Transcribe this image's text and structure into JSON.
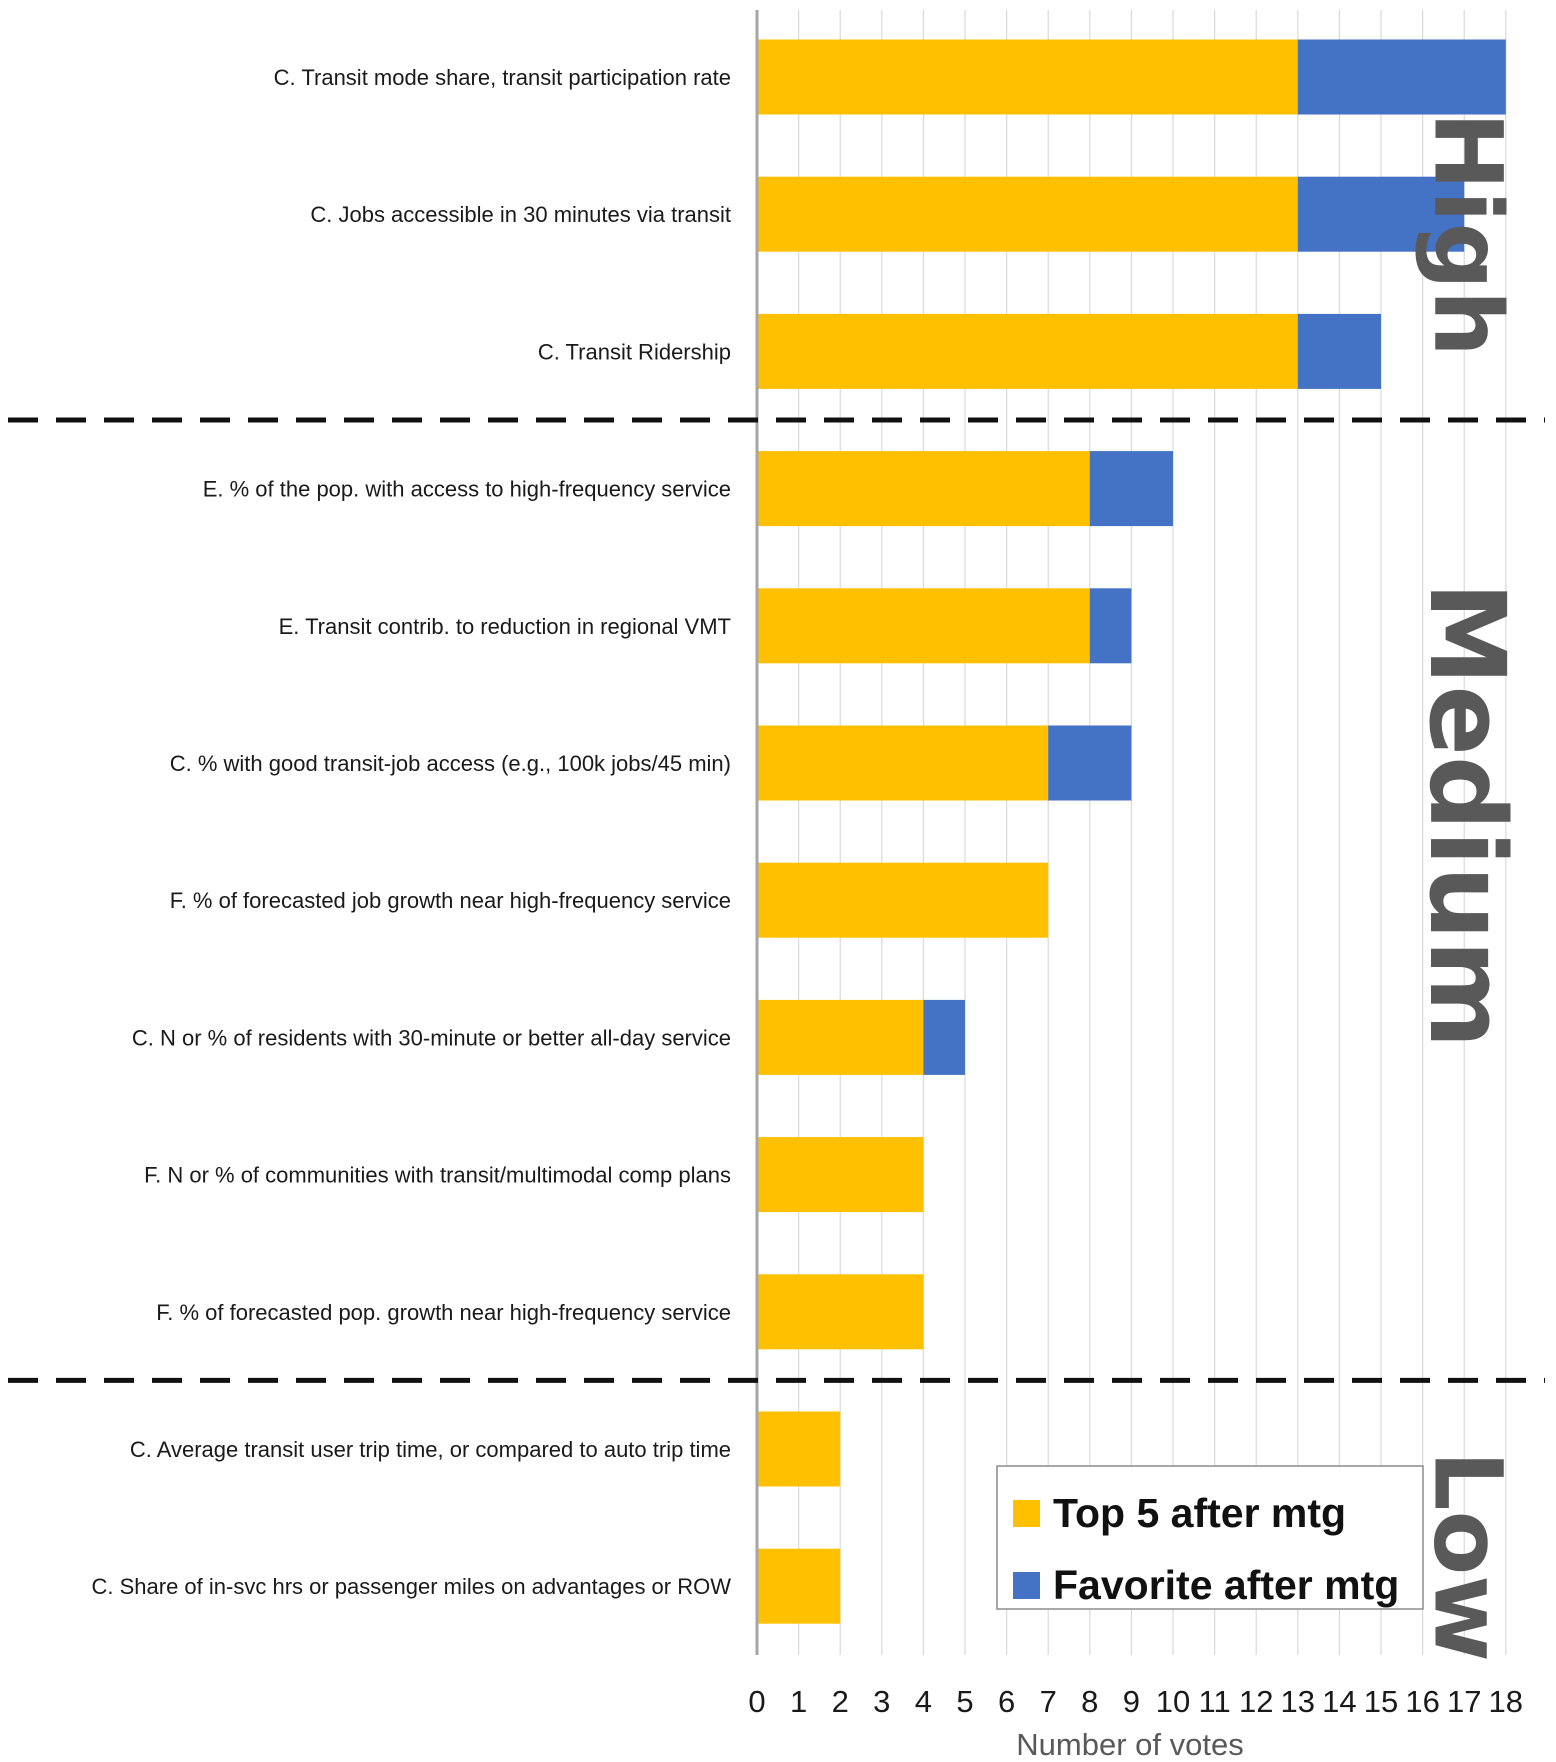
{
  "chart_data": {
    "type": "bar",
    "orientation": "horizontal",
    "stacked": true,
    "categories": [
      "C. Transit mode share, transit participation rate",
      "C. Jobs accessible in 30 minutes via transit",
      "C. Transit Ridership",
      "E. % of the pop. with access to high-frequency service",
      "E. Transit contrib. to reduction in regional VMT",
      "C. % with good transit-job access (e.g., 100k jobs/45 min)",
      "F. % of forecasted job growth near high-frequency service",
      "C. N or % of residents with 30-minute or better all-day service",
      "F. N or % of communities with transit/multimodal comp plans",
      "F. % of forecasted pop. growth near high-frequency service",
      "C. Average transit user trip time, or compared to auto trip time",
      "C. Share of in-svc hrs or passenger miles on advantages or ROW"
    ],
    "series": [
      {
        "name": "Top 5 after mtg",
        "color": "#FFC000",
        "values": [
          13,
          13,
          13,
          8,
          8,
          7,
          7,
          4,
          4,
          4,
          2,
          2
        ]
      },
      {
        "name": "Favorite after mtg",
        "color": "#4472C4",
        "values": [
          5,
          4,
          2,
          2,
          1,
          2,
          0,
          1,
          0,
          0,
          0,
          0
        ]
      }
    ],
    "xlabel": "Number of votes",
    "xlim": [
      0,
      18
    ],
    "xticks": [
      "0",
      "1",
      "2",
      "3",
      "4",
      "5",
      "6",
      "7",
      "8",
      "9",
      "10",
      "11",
      "12",
      "13",
      "14",
      "15",
      "16",
      "17",
      "18"
    ],
    "grid": "vertical",
    "legend": "bottom-right",
    "bands": [
      {
        "label": "High",
        "start": 0,
        "end": 2
      },
      {
        "label": "Medium",
        "start": 3,
        "end": 9
      },
      {
        "label": "Low",
        "start": 10,
        "end": 11
      }
    ],
    "band_label_color": "#595959",
    "divider_style": "dashed"
  }
}
